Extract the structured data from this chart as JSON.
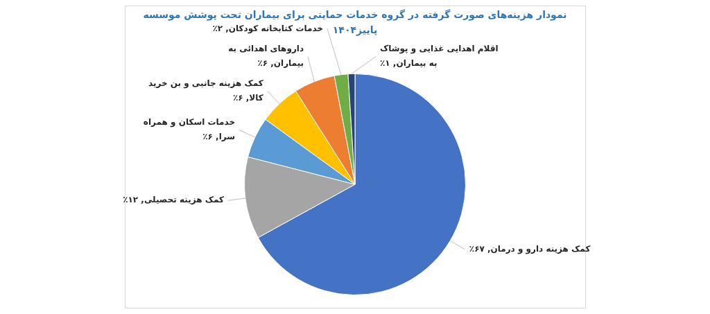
{
  "chart_data": {
    "type": "pie",
    "title": "نمودار هزینه‌های صورت گرفته در گروه خدمات حمایتی برای بیماران تحت پوشش موسسه پاییز۱۴۰۴",
    "categories": [
      "کمک هزینه دارو و درمان",
      "کمک هزینه تحصیلی",
      "خدمات اسکان و همراه سرا",
      "کمک هزینه جانبی و بن خرید کالا",
      "داروهای اهدائی به بیماران",
      "خدمات کتابخانه کودکان",
      "اقلام اهدایی غذایی و پوشاک به بیماران"
    ],
    "values": [
      67,
      12,
      6,
      6,
      6,
      2,
      1
    ],
    "value_labels": [
      "۶۷٪",
      "۱۲٪",
      "۶٪",
      "۶٪",
      "۶٪",
      "۲٪",
      "۱٪"
    ],
    "colors": [
      "#4472c4",
      "#a5a5a5",
      "#5b9bd5",
      "#ffc000",
      "#ed7d31",
      "#70ad47",
      "#264478"
    ]
  }
}
